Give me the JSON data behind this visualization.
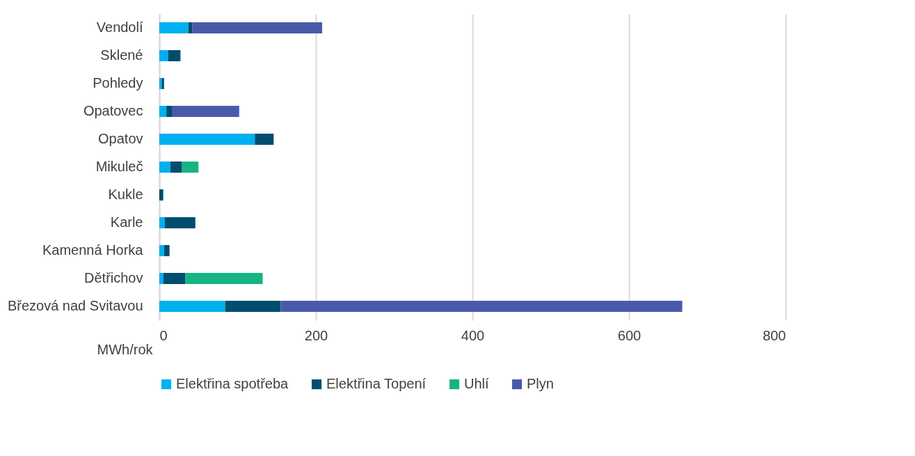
{
  "chart_data": {
    "type": "bar",
    "orientation": "horizontal",
    "stacked": true,
    "xlabel": "MWh/rok",
    "categories": [
      "Vendolí",
      "Sklené",
      "Pohledy",
      "Opatovec",
      "Opatov",
      "Mikuleč",
      "Kukle",
      "Karle",
      "Kamenná Horka",
      "Dětřichov",
      "Březová nad Svitavou"
    ],
    "series": [
      {
        "name": "Elektřina spotřeba",
        "color": "#00b0f0",
        "values": [
          37,
          11,
          3,
          9,
          122,
          14,
          0,
          7,
          6,
          5,
          84
        ]
      },
      {
        "name": "Elektřina Topení",
        "color": "#004d6e",
        "values": [
          5,
          16,
          3,
          7,
          24,
          15,
          5,
          39,
          7,
          28,
          71
        ]
      },
      {
        "name": "Uhlí",
        "color": "#16b384",
        "values": [
          0,
          0,
          0,
          0,
          0,
          21,
          0,
          0,
          0,
          99,
          0
        ]
      },
      {
        "name": "Plyn",
        "color": "#4a5aab",
        "values": [
          166,
          0,
          0,
          86,
          0,
          0,
          0,
          0,
          0,
          0,
          513
        ]
      }
    ],
    "xlim": [
      0,
      800
    ],
    "xticks": [
      0,
      200,
      400,
      600,
      800
    ],
    "grid": "x",
    "legend": "bottom"
  }
}
